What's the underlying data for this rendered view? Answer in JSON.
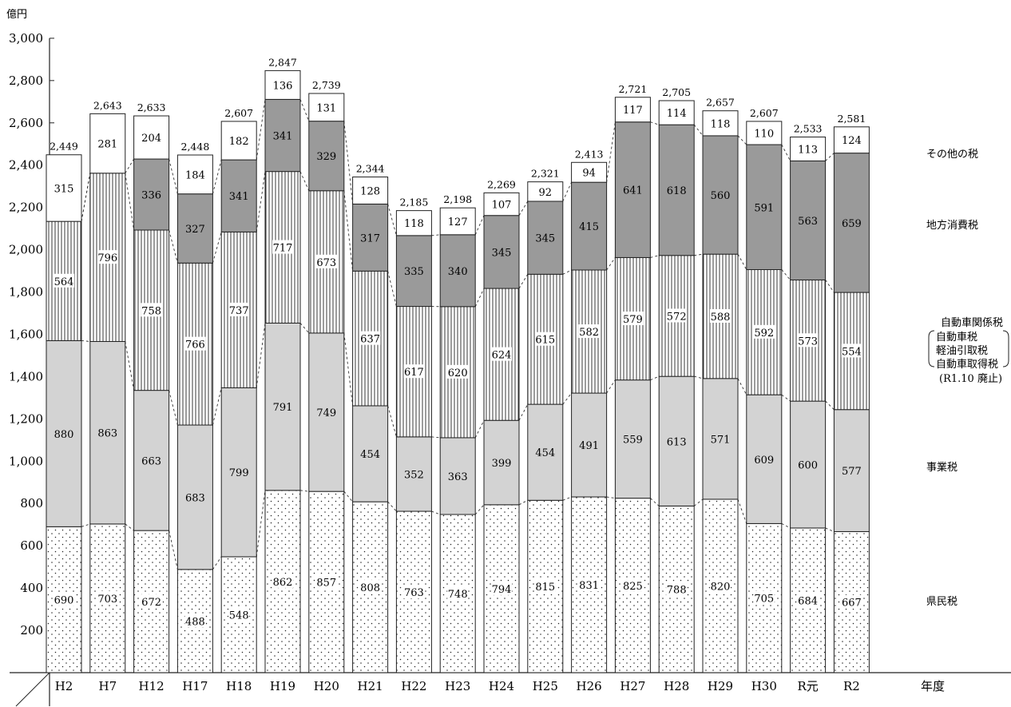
{
  "chart_data": {
    "type": "bar",
    "stacked": true,
    "unit": "億円",
    "xlabel": "年度",
    "ylim": [
      0,
      3000
    ],
    "yticks": [
      200,
      400,
      600,
      800,
      1000,
      1200,
      1400,
      1600,
      1800,
      2000,
      2200,
      2400,
      2600,
      2800,
      3000
    ],
    "ytick_labels": [
      "200",
      "400",
      "600",
      "800",
      "1,000",
      "1,200",
      "1,400",
      "1,600",
      "1,800",
      "2,000",
      "2,200",
      "2,400",
      "2,600",
      "2,800",
      "3,000"
    ],
    "categories": [
      "H2",
      "H7",
      "H12",
      "H17",
      "H18",
      "H19",
      "H20",
      "H21",
      "H22",
      "H23",
      "H24",
      "H25",
      "H26",
      "H27",
      "H28",
      "H29",
      "H30",
      "R元",
      "R2"
    ],
    "series": [
      {
        "name": "県民税",
        "fill": "dots",
        "values": [
          690,
          703,
          672,
          488,
          548,
          862,
          857,
          808,
          763,
          748,
          794,
          815,
          831,
          825,
          788,
          820,
          705,
          684,
          667
        ]
      },
      {
        "name": "事業税",
        "fill": "#d3d3d3",
        "values": [
          880,
          863,
          663,
          683,
          799,
          791,
          749,
          454,
          352,
          363,
          399,
          454,
          491,
          559,
          613,
          571,
          609,
          600,
          577
        ]
      },
      {
        "name": "自動車関係税",
        "fill": "vlines",
        "values": [
          564,
          796,
          758,
          766,
          737,
          717,
          673,
          637,
          617,
          620,
          624,
          615,
          582,
          579,
          572,
          588,
          592,
          573,
          554
        ]
      },
      {
        "name": "地方消費税",
        "fill": "#9a9a9a",
        "values": [
          null,
          null,
          336,
          327,
          341,
          341,
          329,
          317,
          335,
          340,
          345,
          345,
          415,
          641,
          618,
          560,
          591,
          563,
          659
        ]
      },
      {
        "name": "その他の税",
        "fill": "#ffffff",
        "values": [
          315,
          281,
          204,
          184,
          182,
          136,
          131,
          128,
          118,
          127,
          107,
          92,
          94,
          117,
          114,
          118,
          110,
          113,
          124
        ]
      }
    ],
    "totals": [
      "2,449",
      "2,643",
      "2,633",
      "2,448",
      "2,607",
      "2,847",
      "2,739",
      "2,344",
      "2,185",
      "2,198",
      "2,269",
      "2,321",
      "2,413",
      "2,721",
      "2,705",
      "2,657",
      "2,607",
      "2,533",
      "2,581"
    ],
    "legend": {
      "other": "その他の税",
      "local_consumption": "地方消費税",
      "auto_group": "自動車関係税",
      "auto_items": [
        "自動車税",
        "軽油引取税",
        "自動車取得税"
      ],
      "auto_note": "(R1.10 廃止)",
      "business": "事業税",
      "resident": "県民税"
    },
    "grid": false
  }
}
